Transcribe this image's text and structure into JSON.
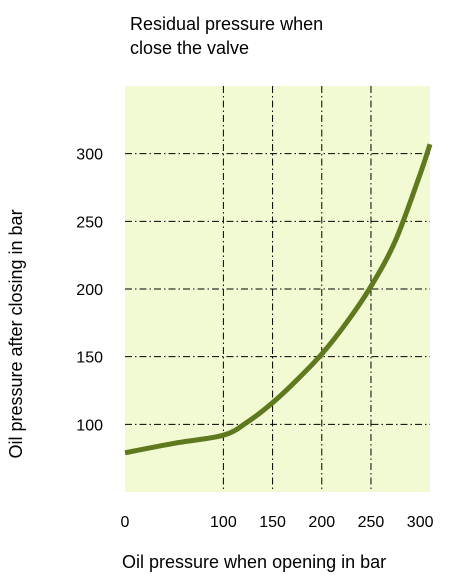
{
  "chart_data": {
    "type": "line",
    "title_lines": [
      "Residual pressure when",
      "close the valve"
    ],
    "xlabel": "Oil pressure when opening in bar",
    "ylabel": "Oil pressure after closing in bar",
    "x_ticks": [
      0,
      100,
      150,
      200,
      250,
      300
    ],
    "y_ticks": [
      100,
      150,
      200,
      250,
      300
    ],
    "xlim": [
      0,
      310
    ],
    "ylim": [
      50,
      350
    ],
    "grid": true,
    "background_color": "#f2fad3",
    "grid_color": "#000000",
    "series": [
      {
        "color": "#5f7a1e",
        "points": [
          [
            0,
            79
          ],
          [
            50,
            86
          ],
          [
            100,
            92
          ],
          [
            125,
            102
          ],
          [
            150,
            116
          ],
          [
            175,
            133
          ],
          [
            200,
            152
          ],
          [
            225,
            175
          ],
          [
            250,
            202
          ],
          [
            275,
            236
          ],
          [
            300,
            285
          ],
          [
            310,
            307
          ]
        ]
      }
    ]
  }
}
